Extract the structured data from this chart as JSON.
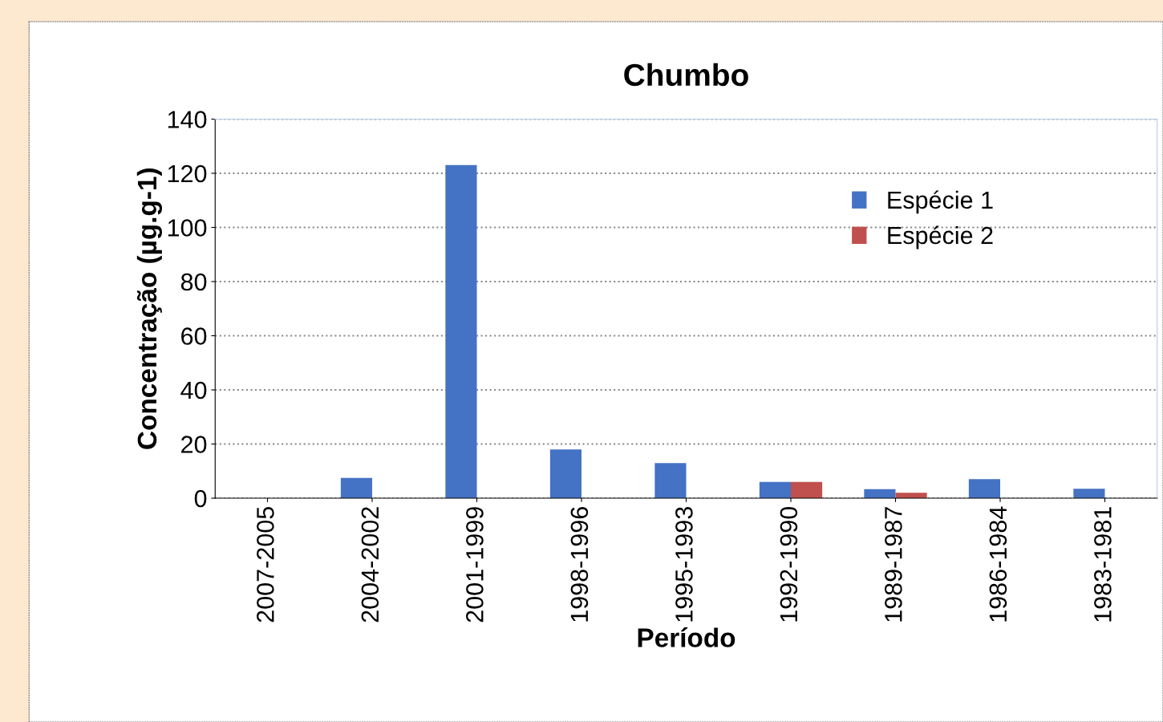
{
  "chart_data": {
    "type": "bar",
    "title": "Chumbo",
    "xlabel": "Período",
    "ylabel": "Concentração (µg.g-1)",
    "categories": [
      "2007-2005",
      "2004-2002",
      "2001-1999",
      "1998-1996",
      "1995-1993",
      "1992-1990",
      "1989-1987",
      "1986-1984",
      "1983-1981"
    ],
    "series": [
      {
        "name": "Espécie 1",
        "color": "#4472c4",
        "values": [
          null,
          7.5,
          123,
          18,
          13,
          6,
          3.3,
          7,
          3.5
        ]
      },
      {
        "name": "Espécie 2",
        "color": "#c0504d",
        "values": [
          null,
          null,
          null,
          null,
          null,
          6,
          2,
          null,
          null
        ]
      }
    ],
    "ylim": [
      0,
      140
    ],
    "yticks": [
      0,
      20,
      40,
      60,
      80,
      100,
      120,
      140
    ],
    "grid": "y",
    "legend": "top right"
  }
}
